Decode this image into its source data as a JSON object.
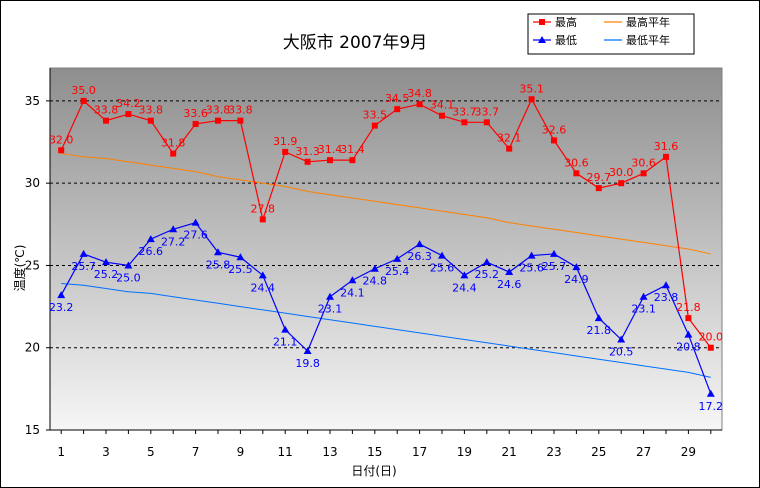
{
  "chart_data": {
    "type": "line",
    "title": "大阪市  2007年9月",
    "xlabel": "日付(日)",
    "ylabel": "温度(℃)",
    "ylim": [
      15,
      37
    ],
    "yticks": [
      15,
      20,
      25,
      30,
      35
    ],
    "xlim": [
      0.5,
      30.5
    ],
    "xticks": [
      1,
      3,
      5,
      7,
      9,
      11,
      13,
      15,
      17,
      19,
      21,
      23,
      25,
      27,
      29
    ],
    "x": [
      1,
      2,
      3,
      4,
      5,
      6,
      7,
      8,
      9,
      10,
      11,
      12,
      13,
      14,
      15,
      16,
      17,
      18,
      19,
      20,
      21,
      22,
      23,
      24,
      25,
      26,
      27,
      28,
      29,
      30
    ],
    "grid": "horizontal dashed",
    "background": "gradient grey",
    "legend_position": "top-right",
    "series": [
      {
        "name": "最高",
        "color": "#ff0000",
        "marker": "square",
        "labels": true,
        "values": [
          32.0,
          35.0,
          33.8,
          34.2,
          33.8,
          31.8,
          33.6,
          33.8,
          33.8,
          27.8,
          31.9,
          31.3,
          31.4,
          31.4,
          33.5,
          34.5,
          34.8,
          34.1,
          33.7,
          33.7,
          32.1,
          35.1,
          32.6,
          30.6,
          29.7,
          30.0,
          30.6,
          31.6,
          21.8,
          20.0
        ]
      },
      {
        "name": "最低",
        "color": "#0000ff",
        "marker": "triangle",
        "labels": true,
        "values": [
          23.2,
          25.7,
          25.2,
          25.0,
          26.6,
          27.2,
          27.6,
          25.8,
          25.5,
          24.4,
          21.1,
          19.8,
          23.1,
          24.1,
          24.8,
          25.4,
          26.3,
          25.6,
          24.4,
          25.2,
          24.6,
          25.6,
          25.7,
          24.9,
          21.8,
          20.5,
          23.1,
          23.8,
          20.8,
          17.2
        ]
      },
      {
        "name": "最高平年",
        "color": "#ff8000",
        "marker": "none",
        "labels": false,
        "values": [
          31.8,
          31.6,
          31.5,
          31.3,
          31.1,
          30.9,
          30.7,
          30.4,
          30.2,
          30.0,
          29.8,
          29.5,
          29.3,
          29.1,
          28.9,
          28.7,
          28.5,
          28.3,
          28.1,
          27.9,
          27.6,
          27.4,
          27.2,
          27.0,
          26.8,
          26.6,
          26.4,
          26.2,
          26.0,
          25.7
        ]
      },
      {
        "name": "最低平年",
        "color": "#0070ff",
        "marker": "none",
        "labels": false,
        "values": [
          23.9,
          23.8,
          23.6,
          23.4,
          23.3,
          23.1,
          22.9,
          22.7,
          22.5,
          22.3,
          22.1,
          21.9,
          21.7,
          21.5,
          21.3,
          21.1,
          20.9,
          20.7,
          20.5,
          20.3,
          20.1,
          19.9,
          19.7,
          19.5,
          19.3,
          19.1,
          18.9,
          18.7,
          18.5,
          18.2
        ]
      }
    ],
    "legend": [
      {
        "series": "最高"
      },
      {
        "series": "最高平年"
      },
      {
        "series": "最低"
      },
      {
        "series": "最低平年"
      }
    ]
  }
}
